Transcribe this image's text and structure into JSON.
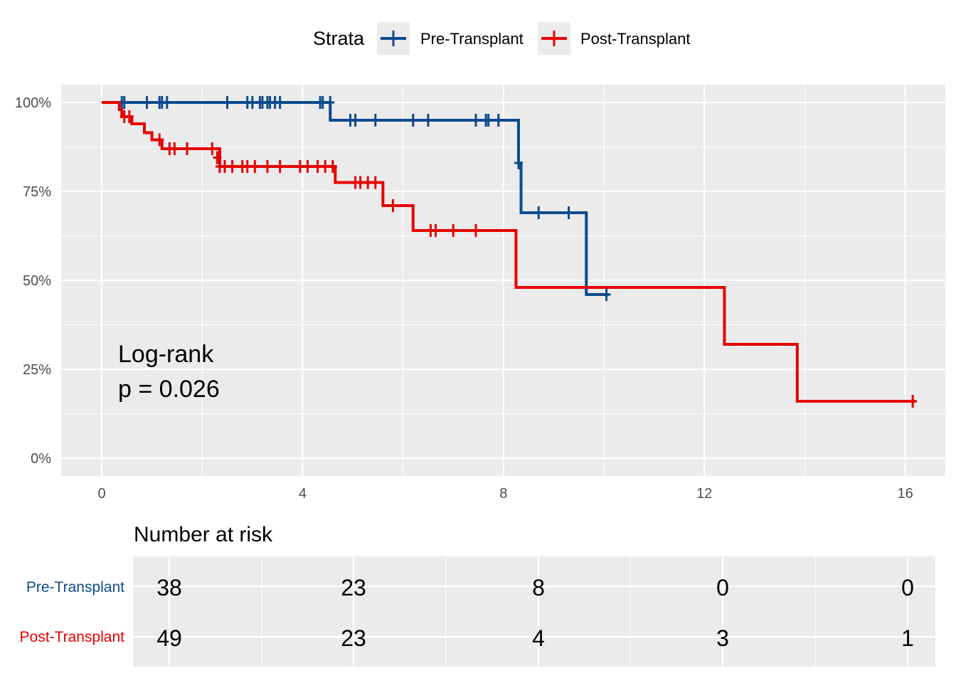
{
  "chart_data": [
    {
      "type": "line",
      "subtype": "kaplan-meier-step",
      "legend": {
        "title": "Strata",
        "position": "top"
      },
      "xlim": [
        0,
        16.2
      ],
      "ylim": [
        0,
        1
      ],
      "x_ticks": [
        "0",
        "4",
        "8",
        "12",
        "16"
      ],
      "y_ticks": [
        "0%",
        "25%",
        "50%",
        "75%",
        "100%"
      ],
      "grid": true,
      "annotation": {
        "line1": "Log-rank",
        "line2": "p = 0.026"
      },
      "series": [
        {
          "name": "Pre-Transplant",
          "color": "#0c4b8e",
          "steps": [
            [
              0.35,
              1.0
            ],
            [
              4.55,
              0.95
            ],
            [
              8.3,
              0.83
            ],
            [
              8.35,
              0.69
            ],
            [
              9.65,
              0.46
            ],
            [
              10.1,
              0.46
            ]
          ],
          "censor_x": [
            0.4,
            0.45,
            0.9,
            1.15,
            1.2,
            1.3,
            2.5,
            2.9,
            3.0,
            3.15,
            3.2,
            3.3,
            3.35,
            3.45,
            3.55,
            4.35,
            4.4,
            4.55,
            4.95,
            5.05,
            5.45,
            6.2,
            6.5,
            7.45,
            7.65,
            7.7,
            7.9,
            8.3,
            8.7,
            9.3,
            10.05
          ],
          "censor_y": [
            1.0,
            1.0,
            1.0,
            1.0,
            1.0,
            1.0,
            1.0,
            1.0,
            1.0,
            1.0,
            1.0,
            1.0,
            1.0,
            1.0,
            1.0,
            1.0,
            1.0,
            1.0,
            0.95,
            0.95,
            0.95,
            0.95,
            0.95,
            0.95,
            0.95,
            0.95,
            0.95,
            0.83,
            0.69,
            0.69,
            0.46
          ]
        },
        {
          "name": "Post-Transplant",
          "color": "#e60000",
          "steps": [
            [
              0,
              1.0
            ],
            [
              0.35,
              0.98
            ],
            [
              0.4,
              0.96
            ],
            [
              0.6,
              0.94
            ],
            [
              0.85,
              0.915
            ],
            [
              1.0,
              0.895
            ],
            [
              1.2,
              0.87
            ],
            [
              2.35,
              0.82
            ],
            [
              4.65,
              0.775
            ],
            [
              5.6,
              0.71
            ],
            [
              6.2,
              0.64
            ],
            [
              8.25,
              0.48
            ],
            [
              12.4,
              0.32
            ],
            [
              13.85,
              0.16
            ],
            [
              16.2,
              0.16
            ]
          ],
          "censor_x": [
            0.45,
            0.55,
            1.15,
            1.35,
            1.45,
            1.7,
            2.2,
            2.3,
            2.35,
            2.45,
            2.6,
            2.8,
            2.9,
            3.05,
            3.3,
            3.55,
            3.95,
            4.1,
            4.3,
            4.45,
            4.6,
            5.05,
            5.15,
            5.3,
            5.45,
            5.8,
            6.55,
            6.65,
            7.0,
            7.45,
            16.15
          ],
          "censor_y": [
            0.96,
            0.96,
            0.895,
            0.87,
            0.87,
            0.87,
            0.87,
            0.845,
            0.82,
            0.82,
            0.82,
            0.82,
            0.82,
            0.82,
            0.82,
            0.82,
            0.82,
            0.82,
            0.82,
            0.82,
            0.82,
            0.775,
            0.775,
            0.775,
            0.775,
            0.71,
            0.64,
            0.64,
            0.64,
            0.64,
            0.16
          ]
        }
      ]
    },
    {
      "type": "table",
      "title": "Number at risk",
      "columns": [
        "0",
        "4",
        "8",
        "12",
        "16"
      ],
      "rows": [
        {
          "label": "Pre-Transplant",
          "color": "#0c4b8e",
          "values": [
            "38",
            "23",
            "8",
            "0",
            "0"
          ]
        },
        {
          "label": "Post-Transplant",
          "color": "#e60000",
          "values": [
            "49",
            "23",
            "4",
            "3",
            "1"
          ]
        }
      ]
    }
  ]
}
